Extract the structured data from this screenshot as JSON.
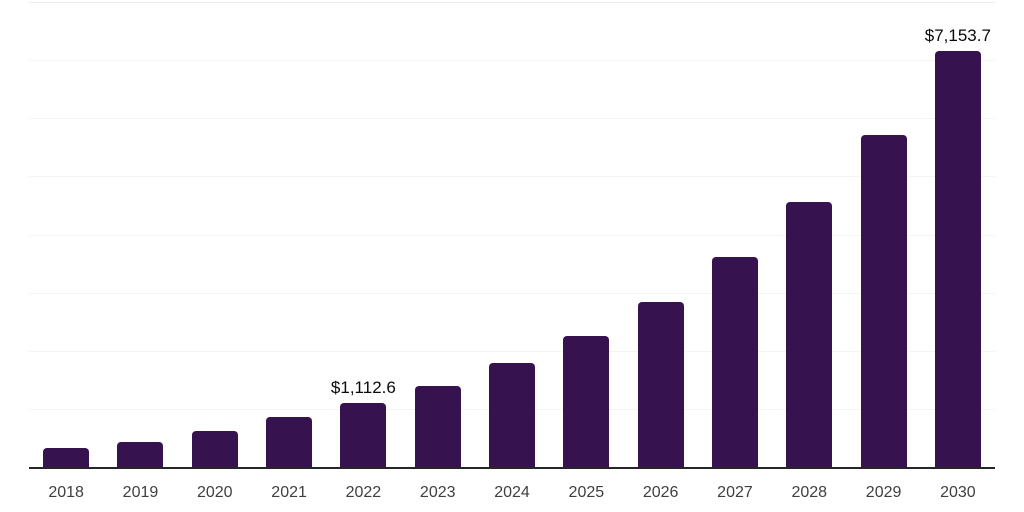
{
  "chart_data": {
    "type": "bar",
    "title": "",
    "xlabel": "",
    "ylabel": "",
    "categories": [
      "2018",
      "2019",
      "2020",
      "2021",
      "2022",
      "2023",
      "2024",
      "2025",
      "2026",
      "2027",
      "2028",
      "2029",
      "2030"
    ],
    "values": [
      345,
      450,
      640,
      870,
      1112.6,
      1400,
      1800,
      2270,
      2855,
      3620,
      4570,
      5725,
      7153.7
    ],
    "data_labels": {
      "4": "$1,112.6",
      "12": "$7,153.7"
    },
    "ylim": [
      0,
      8000
    ],
    "gridline_step": 1000,
    "grid": "horizontal-only",
    "legend": "none",
    "colors": {
      "bar": "#36124E",
      "axis_line": "#262626",
      "gridline": "#f4f4f4",
      "data_label_text": "#0a0a0a",
      "tick_label_text": "#3f3f3f",
      "background": "#ffffff"
    }
  }
}
